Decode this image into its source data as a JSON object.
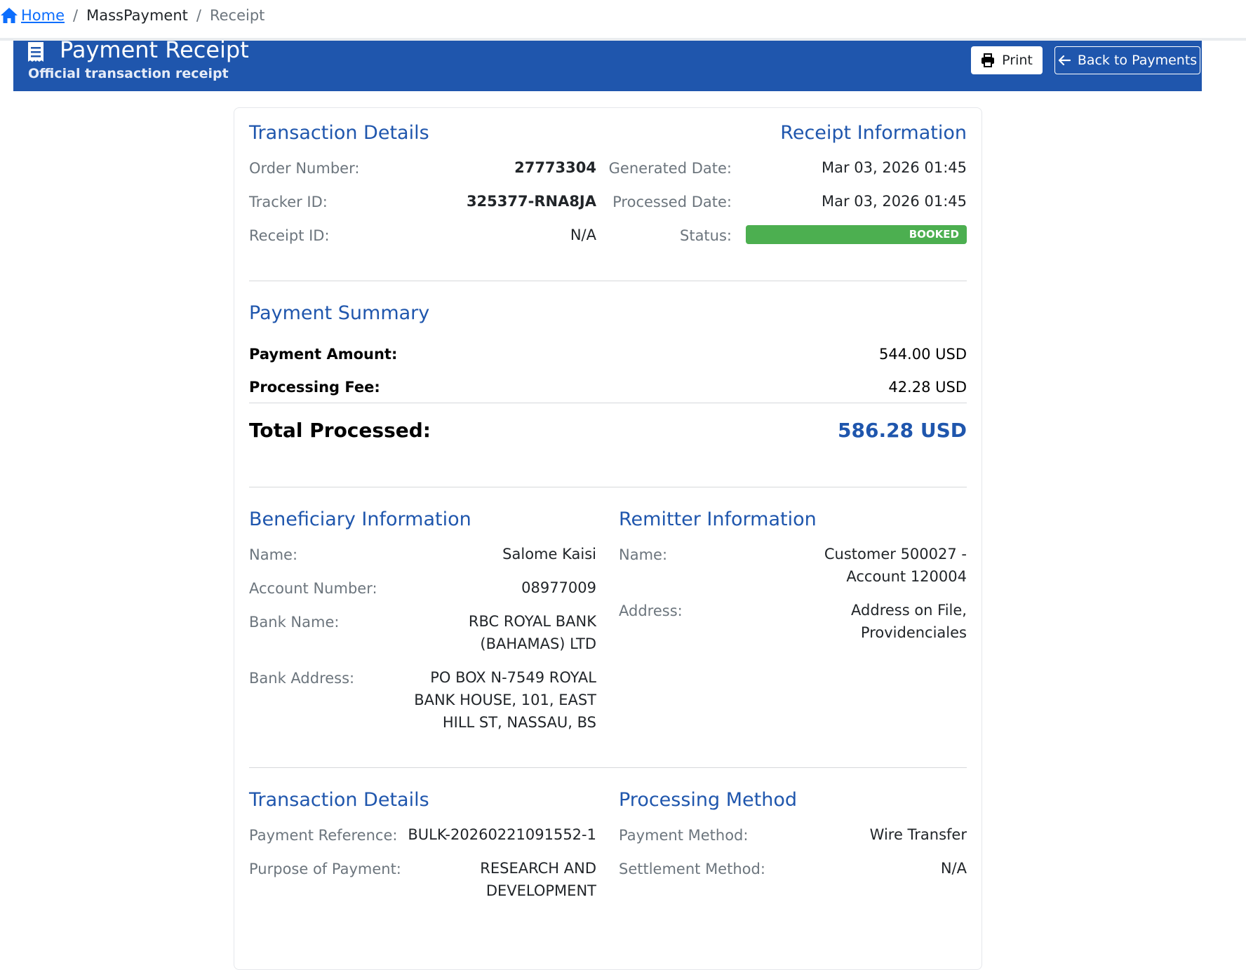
{
  "breadcrumb": {
    "home": "Home",
    "separator": "/",
    "mass_payment": "MassPayment",
    "receipt": "Receipt"
  },
  "header": {
    "title": "Payment Receipt",
    "subtitle": "Official transaction receipt",
    "print_label": "Print",
    "back_label": "Back to Payments"
  },
  "transaction_details": {
    "title": "Transaction Details",
    "order_number_label": "Order Number:",
    "order_number": "27773304",
    "tracker_id_label": "Tracker ID:",
    "tracker_id": "325377-RNA8JA",
    "receipt_id_label": "Receipt ID:",
    "receipt_id": "N/A"
  },
  "receipt_information": {
    "title": "Receipt Information",
    "generated_label": "Generated Date:",
    "generated": "Mar 03, 2026 01:45",
    "processed_label": "Processed Date:",
    "processed": "Mar 03, 2026 01:45",
    "status_label": "Status:",
    "status": "BOOKED"
  },
  "payment_summary": {
    "title": "Payment Summary",
    "amount_label": "Payment Amount:",
    "amount": "544.00 USD",
    "fee_label": "Processing Fee:",
    "fee": "42.28 USD",
    "total_label": "Total Processed:",
    "total": "586.28 USD"
  },
  "beneficiary": {
    "title": "Beneficiary Information",
    "name_label": "Name:",
    "name": "Salome Kaisi",
    "account_label": "Account Number:",
    "account": "08977009",
    "bank_name_label": "Bank Name:",
    "bank_name": "RBC ROYAL BANK (BAHAMAS) LTD",
    "bank_address_label": "Bank Address:",
    "bank_address": "PO BOX N-7549 ROYAL BANK HOUSE, 101, EAST HILL ST, NASSAU, BS"
  },
  "remitter": {
    "title": "Remitter Information",
    "name_label": "Name:",
    "name": "Customer 500027 - Account 120004",
    "address_label": "Address:",
    "address": "Address on File, Providenciales"
  },
  "transaction_details_2": {
    "title": "Transaction Details",
    "reference_label": "Payment Reference:",
    "reference": "BULK-20260221091552-1",
    "purpose_label": "Purpose of Payment:",
    "purpose": "RESEARCH AND DEVELOPMENT"
  },
  "processing_method": {
    "title": "Processing Method",
    "method_label": "Payment Method:",
    "method": "Wire Transfer",
    "settlement_label": "Settlement Method:",
    "settlement": "N/A"
  },
  "colors": {
    "brand_blue": "#1f56ad",
    "status_green": "#4caf50",
    "link_blue": "#0d6efd"
  },
  "icons": {
    "home": "home-icon",
    "receipt": "receipt-icon",
    "print": "printer-icon",
    "back": "arrow-left-icon"
  }
}
